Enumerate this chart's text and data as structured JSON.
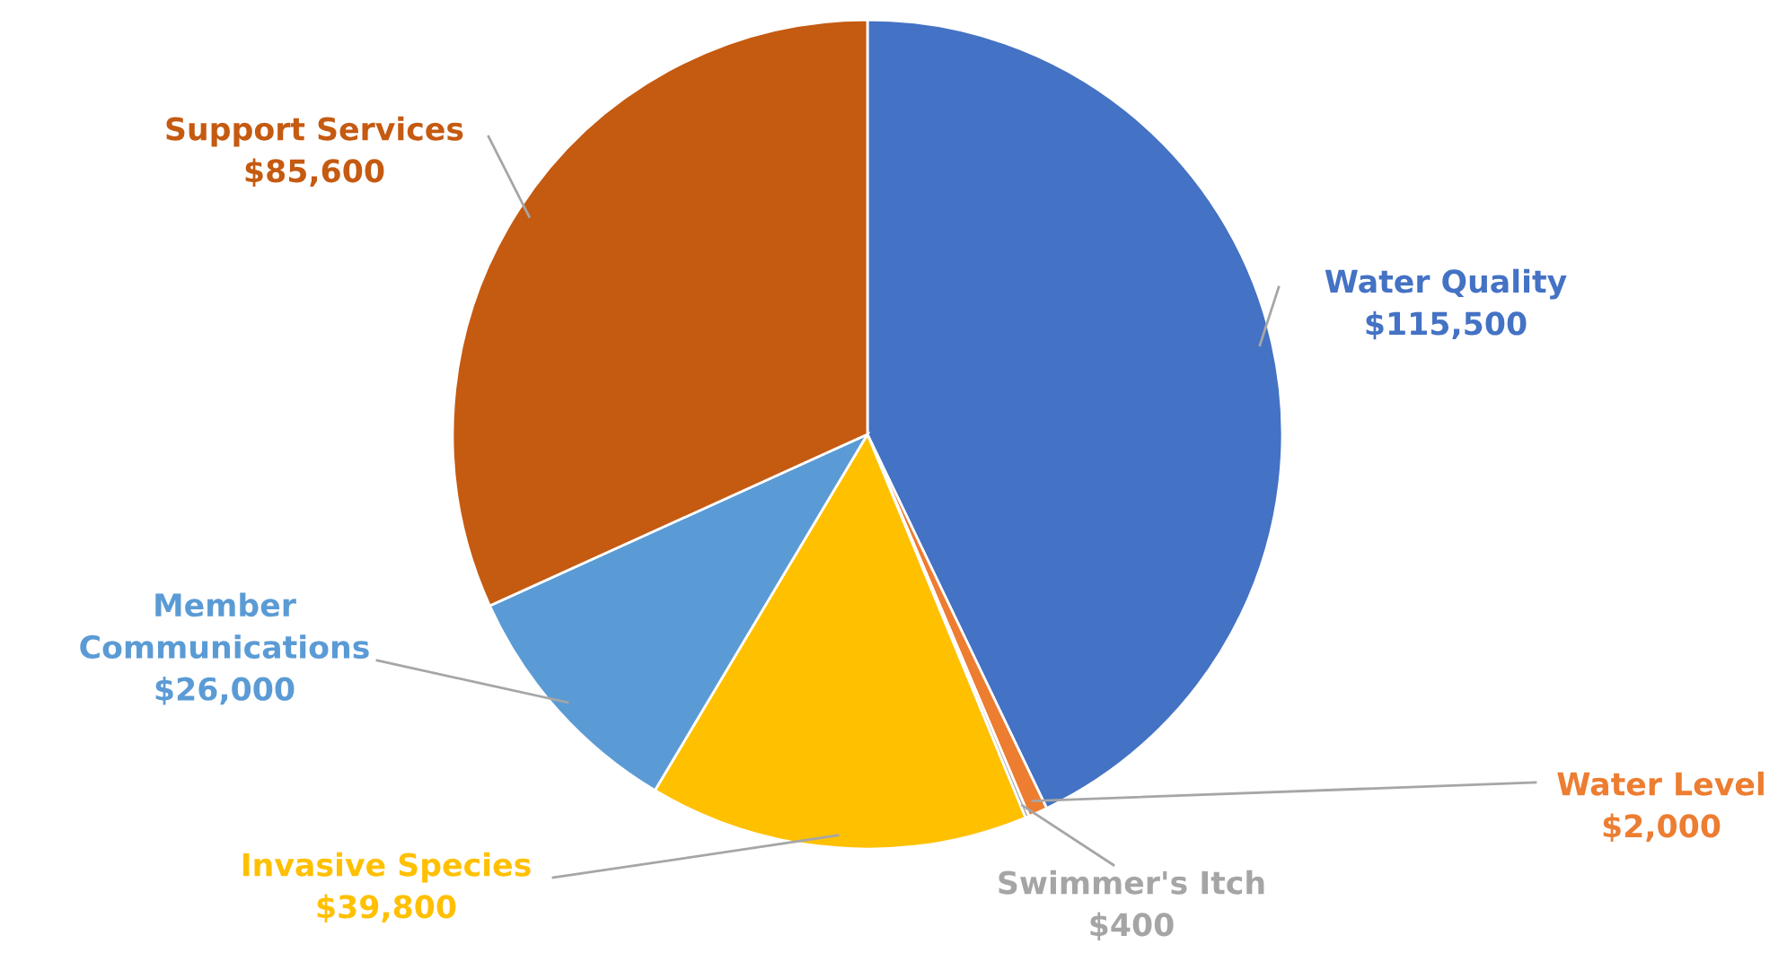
{
  "chart_data": {
    "type": "pie",
    "categories": [
      "Water Quality",
      "Water Level",
      "Swimmer's Itch",
      "Invasive Species",
      "Member Communications",
      "Support Services"
    ],
    "values": [
      115500,
      2000,
      400,
      39800,
      26000,
      85600
    ],
    "value_labels": [
      "$115,500",
      "$2,000",
      "$400",
      "$39,800",
      "$26,000",
      "$85,600"
    ],
    "colors": [
      "#4472c4",
      "#ed7d31",
      "#a5a5a5",
      "#ffc000",
      "#5b9bd5",
      "#c55a11"
    ],
    "legend": false
  }
}
